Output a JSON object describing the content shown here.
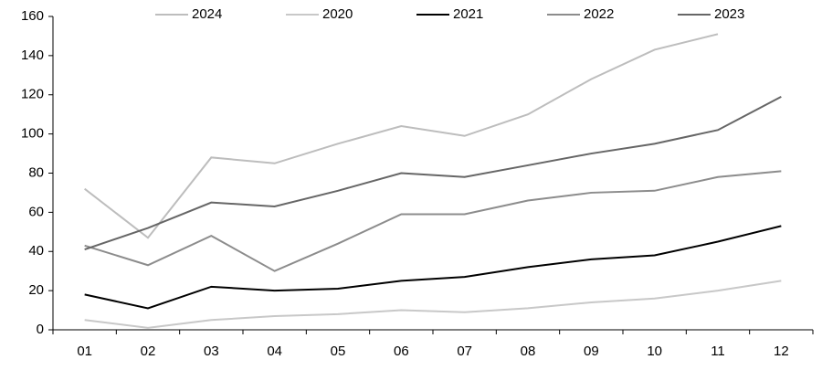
{
  "chart_data": {
    "type": "line",
    "categories": [
      "01",
      "02",
      "03",
      "04",
      "05",
      "06",
      "07",
      "08",
      "09",
      "10",
      "11",
      "12"
    ],
    "series": [
      {
        "name": "2024",
        "color": "#bdbdbd",
        "values": [
          72,
          47,
          88,
          85,
          95,
          104,
          99,
          110,
          128,
          143,
          151,
          null
        ]
      },
      {
        "name": "2020",
        "color": "#c8c8c8",
        "values": [
          5,
          1,
          5,
          7,
          8,
          10,
          9,
          11,
          14,
          16,
          20,
          25
        ]
      },
      {
        "name": "2021",
        "color": "#000000",
        "values": [
          18,
          11,
          22,
          20,
          21,
          25,
          27,
          32,
          36,
          38,
          45,
          53
        ]
      },
      {
        "name": "2022",
        "color": "#8c8c8c",
        "values": [
          43,
          33,
          48,
          30,
          44,
          59,
          59,
          66,
          70,
          71,
          78,
          81
        ]
      },
      {
        "name": "2023",
        "color": "#666666",
        "values": [
          41,
          52,
          65,
          63,
          71,
          80,
          78,
          84,
          90,
          95,
          102,
          119
        ]
      }
    ],
    "ylim": [
      0,
      160
    ],
    "yticks": [
      0,
      20,
      40,
      60,
      80,
      100,
      120,
      140,
      160
    ],
    "legend": "top",
    "grid": false
  }
}
